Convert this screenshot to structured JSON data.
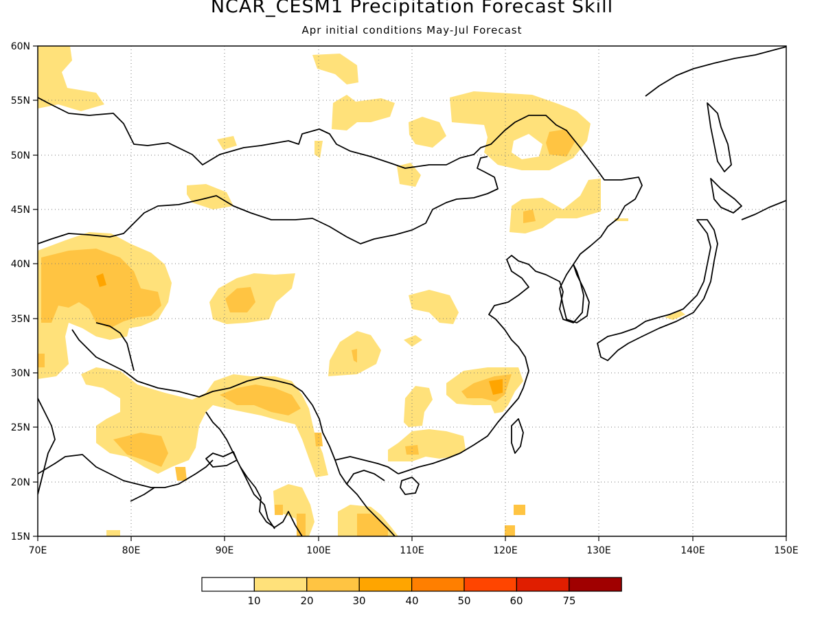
{
  "title": "NCAR_CESM1 Precipitation Forecast Skill",
  "subtitle": "Apr initial conditions  May-Jul Forecast",
  "map": {
    "lon_range": [
      70,
      150
    ],
    "lat_range": [
      15,
      60
    ],
    "lon_ticks": [
      "70E",
      "80E",
      "90E",
      "100E",
      "110E",
      "120E",
      "130E",
      "140E",
      "150E"
    ],
    "lat_ticks": [
      "15N",
      "20N",
      "25N",
      "30N",
      "35N",
      "40N",
      "45N",
      "50N",
      "55N",
      "60N"
    ],
    "grid": "dotted",
    "land_color": "#ffffff",
    "coastline_color": "#000000"
  },
  "colorbar": {
    "labels": [
      "10",
      "20",
      "30",
      "40",
      "50",
      "60",
      "75"
    ],
    "colors": [
      "#ffffff",
      "#ffe17a",
      "#ffc442",
      "#ffa500",
      "#ff7f00",
      "#ff4500",
      "#e01e00",
      "#a00000"
    ]
  }
}
